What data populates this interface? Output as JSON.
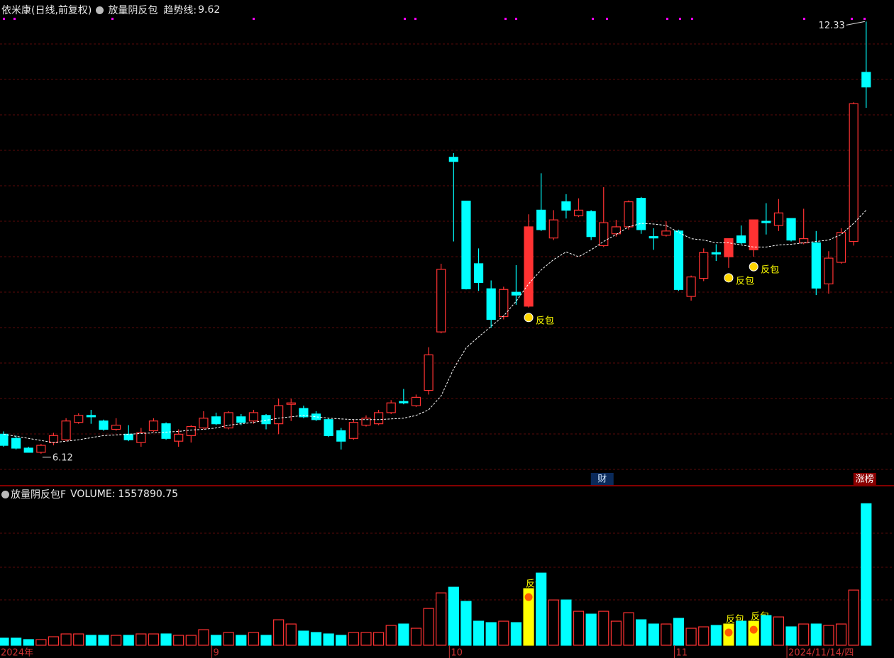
{
  "chart_data": [
    {
      "type": "candlestick",
      "title": "依米康(日线,前复权)",
      "indicator": "放量阴反包",
      "ylim": [
        5.66,
        12.64
      ],
      "up_color": "#ff3232",
      "down_color": "#00ffff",
      "signal_color": "#ffff00",
      "open": [
        6.4,
        6.34,
        6.2,
        6.14,
        6.28,
        6.32,
        6.57,
        6.67,
        6.59,
        6.47,
        6.4,
        6.28,
        6.45,
        6.55,
        6.3,
        6.38,
        6.49,
        6.65,
        6.49,
        6.65,
        6.59,
        6.67,
        6.55,
        6.83,
        6.77,
        6.69,
        6.61,
        6.45,
        6.34,
        6.53,
        6.55,
        6.71,
        6.87,
        6.81,
        7.03,
        7.87,
        10.38,
        9.75,
        8.85,
        8.49,
        8.09,
        8.44,
        8.24,
        9.62,
        9.22,
        9.74,
        9.54,
        9.6,
        9.11,
        9.28,
        9.38,
        9.79,
        9.24,
        9.26,
        9.32,
        8.38,
        8.64,
        9.01,
        8.95,
        9.25,
        9.05,
        9.46,
        9.4,
        9.5,
        9.15,
        9.15,
        8.56,
        8.87,
        9.17,
        11.6
      ],
      "high": [
        6.44,
        6.38,
        6.22,
        6.26,
        6.42,
        6.63,
        6.7,
        6.75,
        6.61,
        6.63,
        6.53,
        6.49,
        6.63,
        6.57,
        6.47,
        6.53,
        6.73,
        6.71,
        6.73,
        6.69,
        6.75,
        6.69,
        6.91,
        6.91,
        6.81,
        6.73,
        6.63,
        6.49,
        6.61,
        6.67,
        6.75,
        6.89,
        7.05,
        6.97,
        7.65,
        8.85,
        10.44,
        9.75,
        9.07,
        8.61,
        8.52,
        8.83,
        9.56,
        10.15,
        9.62,
        9.85,
        9.79,
        9.62,
        9.95,
        9.48,
        9.76,
        9.81,
        9.36,
        9.46,
        9.34,
        8.68,
        9.07,
        9.13,
        9.21,
        9.4,
        9.48,
        9.72,
        9.78,
        9.5,
        9.64,
        9.32,
        9.03,
        9.36,
        11.17,
        12.33
      ],
      "low": [
        6.22,
        6.18,
        6.14,
        6.12,
        6.24,
        6.3,
        6.55,
        6.55,
        6.45,
        6.45,
        6.3,
        6.22,
        6.43,
        6.32,
        6.22,
        6.28,
        6.47,
        6.53,
        6.47,
        6.53,
        6.55,
        6.47,
        6.4,
        6.59,
        6.63,
        6.59,
        6.36,
        6.18,
        6.32,
        6.51,
        6.53,
        6.69,
        6.83,
        6.79,
        6.97,
        7.85,
        9.17,
        8.48,
        8.46,
        7.93,
        8.05,
        8.26,
        8.22,
        9.32,
        9.19,
        9.5,
        9.52,
        9.19,
        9.09,
        9.24,
        9.34,
        9.28,
        9.05,
        9.24,
        8.46,
        8.32,
        8.6,
        8.89,
        8.79,
        9.13,
        8.95,
        9.27,
        9.32,
        9.17,
        9.13,
        8.4,
        8.42,
        8.85,
        9.11,
        11.09
      ],
      "close": [
        6.24,
        6.2,
        6.14,
        6.24,
        6.38,
        6.59,
        6.67,
        6.65,
        6.47,
        6.53,
        6.32,
        6.42,
        6.59,
        6.34,
        6.4,
        6.51,
        6.63,
        6.55,
        6.71,
        6.57,
        6.71,
        6.55,
        6.81,
        6.85,
        6.65,
        6.61,
        6.38,
        6.3,
        6.57,
        6.63,
        6.71,
        6.85,
        6.85,
        6.93,
        7.54,
        8.77,
        10.32,
        8.49,
        8.58,
        8.05,
        8.48,
        8.4,
        9.38,
        9.34,
        9.48,
        9.62,
        9.62,
        9.24,
        9.44,
        9.38,
        9.74,
        9.34,
        9.22,
        9.32,
        8.48,
        8.66,
        9.01,
        8.99,
        9.21,
        9.15,
        9.48,
        9.44,
        9.58,
        9.19,
        9.21,
        8.5,
        8.93,
        9.3,
        11.15,
        11.39
      ],
      "trend": {
        "name": "趋势线:",
        "color": "#ffffff",
        "values": [
          6.4,
          6.37,
          6.34,
          6.31,
          6.28,
          6.3,
          6.32,
          6.35,
          6.38,
          6.39,
          6.4,
          6.41,
          6.42,
          6.43,
          6.44,
          6.46,
          6.47,
          6.49,
          6.53,
          6.55,
          6.57,
          6.6,
          6.63,
          6.65,
          6.67,
          6.65,
          6.63,
          6.62,
          6.61,
          6.61,
          6.61,
          6.62,
          6.63,
          6.67,
          6.75,
          6.95,
          7.34,
          7.64,
          7.8,
          7.95,
          8.1,
          8.31,
          8.56,
          8.76,
          8.91,
          9.02,
          8.95,
          9.05,
          9.17,
          9.27,
          9.38,
          9.43,
          9.42,
          9.4,
          9.3,
          9.21,
          9.19,
          9.15,
          9.15,
          9.12,
          9.09,
          9.09,
          9.12,
          9.13,
          9.15,
          9.17,
          9.19,
          9.27,
          9.43,
          9.62
        ]
      },
      "signal_labels": [
        null,
        null,
        null,
        null,
        null,
        null,
        null,
        null,
        null,
        null,
        null,
        null,
        null,
        null,
        null,
        null,
        null,
        null,
        null,
        null,
        null,
        null,
        null,
        null,
        null,
        null,
        null,
        null,
        null,
        null,
        null,
        null,
        null,
        null,
        null,
        null,
        null,
        null,
        null,
        null,
        null,
        null,
        "反包",
        null,
        null,
        null,
        null,
        null,
        null,
        null,
        null,
        null,
        null,
        null,
        null,
        null,
        null,
        null,
        "反包",
        null,
        "反包",
        null,
        null,
        null,
        null,
        null,
        null,
        null,
        null,
        null
      ],
      "event_labels": [
        null,
        null,
        null,
        null,
        null,
        null,
        null,
        null,
        null,
        null,
        null,
        null,
        null,
        null,
        null,
        null,
        null,
        null,
        null,
        null,
        null,
        null,
        null,
        null,
        null,
        null,
        null,
        null,
        null,
        null,
        null,
        null,
        null,
        null,
        null,
        null,
        null,
        null,
        null,
        null,
        null,
        null,
        null,
        null,
        null,
        null,
        null,
        null,
        "财",
        null,
        null,
        null,
        null,
        null,
        null,
        null,
        null,
        null,
        null,
        null,
        null,
        null,
        null,
        null,
        null,
        null,
        null,
        null,
        null,
        "涨榜"
      ]
    },
    {
      "type": "bar",
      "title": "放量阴反包F",
      "label": "VOLUME:",
      "ylim": [
        0,
        1600000
      ],
      "values": [
        77900,
        77900,
        62300,
        62300,
        93500,
        124600,
        124600,
        109000,
        109000,
        109000,
        109000,
        124600,
        124600,
        124600,
        109000,
        109000,
        171400,
        109000,
        140200,
        109000,
        140200,
        109000,
        280400,
        233700,
        155800,
        140200,
        124600,
        109000,
        140200,
        140200,
        140200,
        218100,
        233700,
        186900,
        405000,
        576400,
        638700,
        482900,
        264800,
        249200,
        264800,
        249200,
        623100,
        794500,
        498500,
        498500,
        373900,
        342700,
        373900,
        264800,
        358300,
        280400,
        233700,
        233700,
        296000,
        186900,
        202500,
        218100,
        233700,
        264800,
        264800,
        327100,
        311600,
        202500,
        233700,
        233700,
        218100,
        233700,
        607500,
        1557890.75
      ],
      "categories": [
        "2024年",
        null,
        null,
        null,
        null,
        null,
        null,
        null,
        null,
        null,
        null,
        null,
        null,
        null,
        null,
        null,
        null,
        "9",
        null,
        null,
        null,
        null,
        null,
        null,
        null,
        null,
        null,
        null,
        null,
        null,
        null,
        null,
        null,
        null,
        null,
        null,
        "10",
        null,
        null,
        null,
        null,
        null,
        null,
        null,
        null,
        null,
        null,
        null,
        null,
        null,
        null,
        null,
        null,
        null,
        "11",
        null,
        null,
        null,
        null,
        null,
        null,
        null,
        null,
        "2024/11/14/四",
        null,
        null,
        null,
        null,
        null,
        null
      ]
    }
  ]
}
